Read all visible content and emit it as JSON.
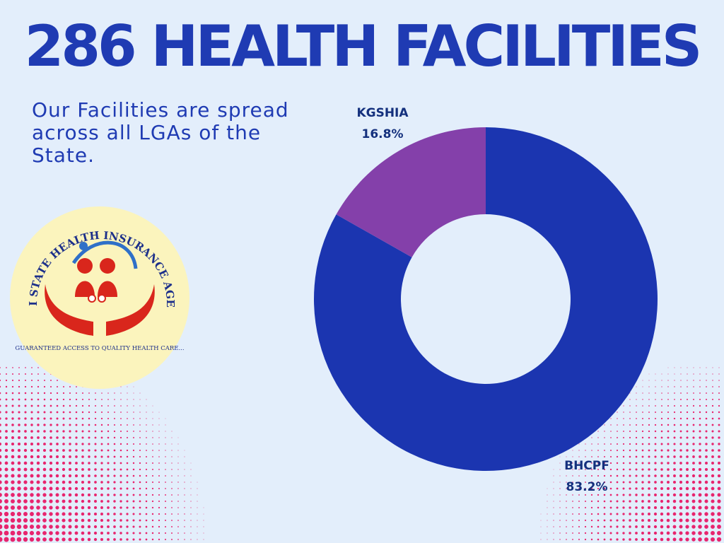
{
  "title": "286 HEALTH FACILITIES",
  "subtitle": "Our Facilities are spread across all LGAs of the State.",
  "logo": {
    "arc_text": "KOGI STATE HEALTH INSURANCE AGENCY",
    "motto": "GUARANTEED ACCESS TO QUALITY HEALTH CARE..."
  },
  "colors": {
    "background": "#e3eefb",
    "title": "#1f3bb3",
    "bhcpf": "#1b35b0",
    "kgshia": "#8440aa",
    "label": "#14307d",
    "dots": "#e8246e"
  },
  "chart_data": {
    "type": "pie",
    "donut": true,
    "title": "",
    "slices": [
      {
        "label": "BHCPF",
        "value": 83.2,
        "display": "83.2%",
        "color": "#1b35b0"
      },
      {
        "label": "KGSHIA",
        "value": 16.8,
        "display": "16.8%",
        "color": "#8440aa"
      }
    ]
  }
}
